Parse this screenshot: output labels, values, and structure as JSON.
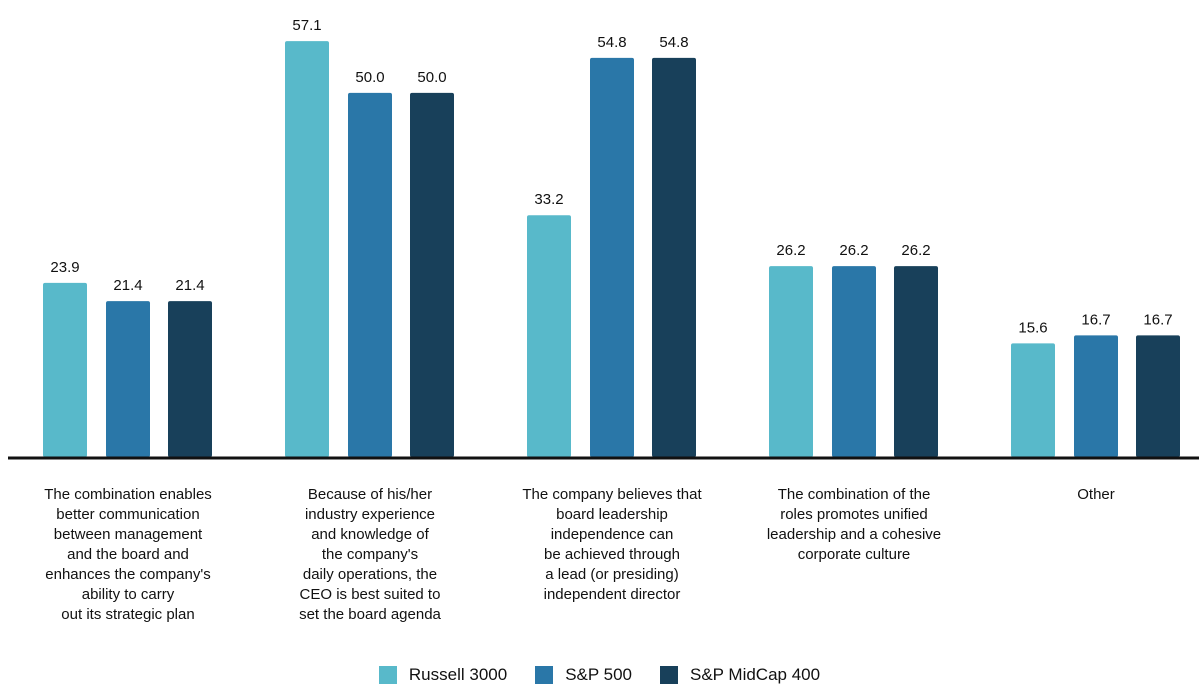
{
  "chart_data": {
    "type": "bar",
    "title": "",
    "xlabel": "",
    "ylabel": "",
    "ylim": [
      0,
      60
    ],
    "grid": false,
    "legend_position": "bottom-center",
    "categories": [
      "The combination enables\nbetter communication\nbetween management\nand the board and\nenhances the company's\nability to carry\nout its strategic plan",
      "Because of his/her\nindustry experience\nand knowledge of\nthe company's\ndaily operations, the\nCEO is best suited to\nset the board agenda",
      "The company believes that\nboard leadership\nindependence can\nbe achieved through\na lead (or presiding)\nindependent director",
      "The combination of the\nroles promotes unified\nleadership and a cohesive\ncorporate culture",
      "Other"
    ],
    "series": [
      {
        "name": "Russell 3000",
        "color": "#58b9ca",
        "values": [
          23.9,
          57.1,
          33.2,
          26.2,
          15.6
        ],
        "labels": [
          "23.9",
          "57.1",
          "33.2",
          "26.2",
          "15.6"
        ]
      },
      {
        "name": "S&P 500",
        "color": "#2a77a8",
        "values": [
          21.4,
          50.0,
          54.8,
          26.2,
          16.7
        ],
        "labels": [
          "21.4",
          "50.0",
          "54.8",
          "26.2",
          "16.7"
        ]
      },
      {
        "name": "S&P MidCap 400",
        "color": "#18405a",
        "values": [
          21.4,
          50.0,
          54.8,
          26.2,
          16.7
        ],
        "labels": [
          "21.4",
          "50.0",
          "54.8",
          "26.2",
          "16.7"
        ]
      }
    ]
  }
}
